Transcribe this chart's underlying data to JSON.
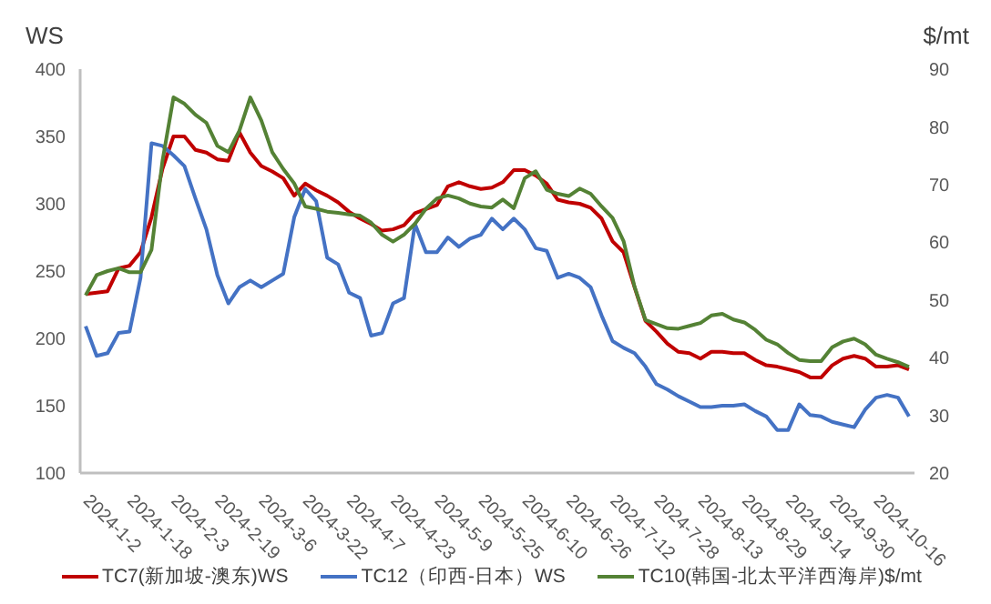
{
  "chart_data": {
    "type": "line",
    "ylabel": "WS",
    "y2label": "$/mt",
    "categories": [
      "2024-1-2",
      null,
      null,
      null,
      "2024-1-18",
      null,
      null,
      null,
      "2024-2-3",
      null,
      null,
      null,
      "2024-2-19",
      null,
      null,
      null,
      "2024-3-6",
      null,
      null,
      null,
      "2024-3-22",
      null,
      null,
      null,
      "2024-4-7",
      null,
      null,
      null,
      "2024-4-23",
      null,
      null,
      null,
      "2024-5-9",
      null,
      null,
      null,
      "2024-5-25",
      null,
      null,
      null,
      "2024-6-10",
      null,
      null,
      null,
      "2024-6-26",
      null,
      null,
      null,
      "2024-7-12",
      null,
      null,
      null,
      "2024-7-28",
      null,
      null,
      null,
      "2024-8-13",
      null,
      null,
      null,
      "2024-8-29",
      null,
      null,
      null,
      "2024-9-14",
      null,
      null,
      null,
      "2024-9-30",
      null,
      null,
      null,
      "2024-10-16",
      null,
      null,
      null
    ],
    "series": [
      {
        "name": "TC7(新加坡-澳东)WS",
        "color": "#c00000",
        "values": [
          233,
          234,
          235,
          252,
          254,
          264,
          290,
          326,
          350,
          350,
          340,
          338,
          333,
          332,
          353,
          338,
          328,
          324,
          319,
          306,
          315,
          310,
          306,
          301,
          294,
          289,
          285,
          280,
          281,
          284,
          293,
          296,
          299,
          313,
          316,
          313,
          311,
          312,
          316,
          325,
          325,
          321,
          315,
          303,
          301,
          300,
          297,
          289,
          272,
          264,
          238,
          213,
          205,
          196,
          190,
          189,
          185,
          190,
          190,
          189,
          189,
          184,
          180,
          179,
          177,
          175,
          171,
          171,
          180,
          185,
          187,
          185,
          179,
          179,
          180,
          177
        ]
      },
      {
        "name": "TC12（印西-日本）WS",
        "color": "#4472c4",
        "values": [
          209,
          187,
          189,
          204,
          205,
          245,
          345,
          343,
          336,
          328,
          304,
          281,
          247,
          226,
          238,
          243,
          238,
          243,
          248,
          290,
          311,
          302,
          260,
          255,
          234,
          230,
          202,
          204,
          226,
          230,
          285,
          264,
          264,
          275,
          268,
          274,
          277,
          289,
          281,
          289,
          281,
          267,
          265,
          245,
          248,
          245,
          238,
          217,
          198,
          193,
          189,
          179,
          166,
          162,
          157,
          153,
          149,
          149,
          150,
          150,
          151,
          146,
          142,
          132,
          132,
          151,
          143,
          142,
          138,
          136,
          134,
          147,
          156,
          158,
          156,
          142
        ]
      },
      {
        "name": "TC10(韩国-北太平洋西海岸)$/mt",
        "color": "#548235",
        "axis": "y2",
        "values": [
          50.8,
          54.3,
          55.0,
          55.5,
          54.8,
          54.8,
          58.7,
          74.1,
          85.1,
          84.0,
          82.1,
          80.7,
          76.7,
          75.6,
          79.3,
          85.1,
          81.1,
          75.6,
          72.7,
          70.2,
          66.2,
          65.8,
          65.3,
          65.1,
          64.8,
          64.6,
          63.4,
          61.3,
          60.1,
          61.3,
          63.2,
          65.8,
          67.6,
          68.1,
          67.6,
          66.7,
          66.2,
          66.0,
          67.4,
          65.9,
          71.1,
          72.3,
          69.1,
          68.4,
          68.0,
          69.3,
          68.4,
          66.2,
          64.2,
          60.2,
          52.3,
          46.5,
          45.8,
          45.1,
          45.0,
          45.5,
          46.0,
          47.3,
          47.6,
          46.6,
          46.1,
          44.8,
          43.1,
          42.3,
          40.8,
          39.6,
          39.4,
          39.4,
          41.8,
          42.8,
          43.3,
          42.3,
          40.5,
          39.8,
          39.2,
          38.4
        ]
      }
    ],
    "ylim": [
      100,
      400
    ],
    "yticks": [
      100,
      150,
      200,
      250,
      300,
      350,
      400
    ],
    "y2lim": [
      20,
      90
    ],
    "y2ticks": [
      20,
      30,
      40,
      50,
      60,
      70,
      80,
      90
    ],
    "legend": "bottom",
    "marker": "none",
    "line_style": "solid",
    "grid": false
  }
}
